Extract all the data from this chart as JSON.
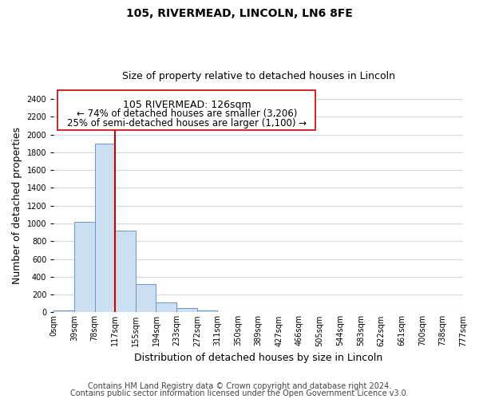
{
  "title": "105, RIVERMEAD, LINCOLN, LN6 8FE",
  "subtitle": "Size of property relative to detached houses in Lincoln",
  "xlabel": "Distribution of detached houses by size in Lincoln",
  "ylabel": "Number of detached properties",
  "bin_labels": [
    "0sqm",
    "39sqm",
    "78sqm",
    "117sqm",
    "155sqm",
    "194sqm",
    "233sqm",
    "272sqm",
    "311sqm",
    "350sqm",
    "389sqm",
    "427sqm",
    "466sqm",
    "505sqm",
    "544sqm",
    "583sqm",
    "622sqm",
    "661sqm",
    "700sqm",
    "738sqm",
    "777sqm"
  ],
  "bar_values": [
    20,
    1020,
    1900,
    920,
    320,
    110,
    50,
    25,
    0,
    0,
    0,
    0,
    0,
    0,
    0,
    0,
    0,
    0,
    0,
    0
  ],
  "bar_color": "#ccdff0",
  "bar_edge_color": "#6699cc",
  "grid_color": "#d0d8e8",
  "vline_x": 3,
  "vline_color": "#cc0000",
  "annotation_title": "105 RIVERMEAD: 126sqm",
  "annotation_line1": "← 74% of detached houses are smaller (3,206)",
  "annotation_line2": "25% of semi-detached houses are larger (1,100) →",
  "annotation_box_color": "#ffffff",
  "annotation_box_edge": "#cc0000",
  "ylim": [
    0,
    2400
  ],
  "yticks": [
    0,
    200,
    400,
    600,
    800,
    1000,
    1200,
    1400,
    1600,
    1800,
    2000,
    2200,
    2400
  ],
  "footer1": "Contains HM Land Registry data © Crown copyright and database right 2024.",
  "footer2": "Contains public sector information licensed under the Open Government Licence v3.0.",
  "title_fontsize": 10,
  "subtitle_fontsize": 9,
  "axis_label_fontsize": 9,
  "tick_fontsize": 7,
  "footer_fontsize": 7,
  "annotation_title_fontsize": 9,
  "annotation_text_fontsize": 8.5
}
